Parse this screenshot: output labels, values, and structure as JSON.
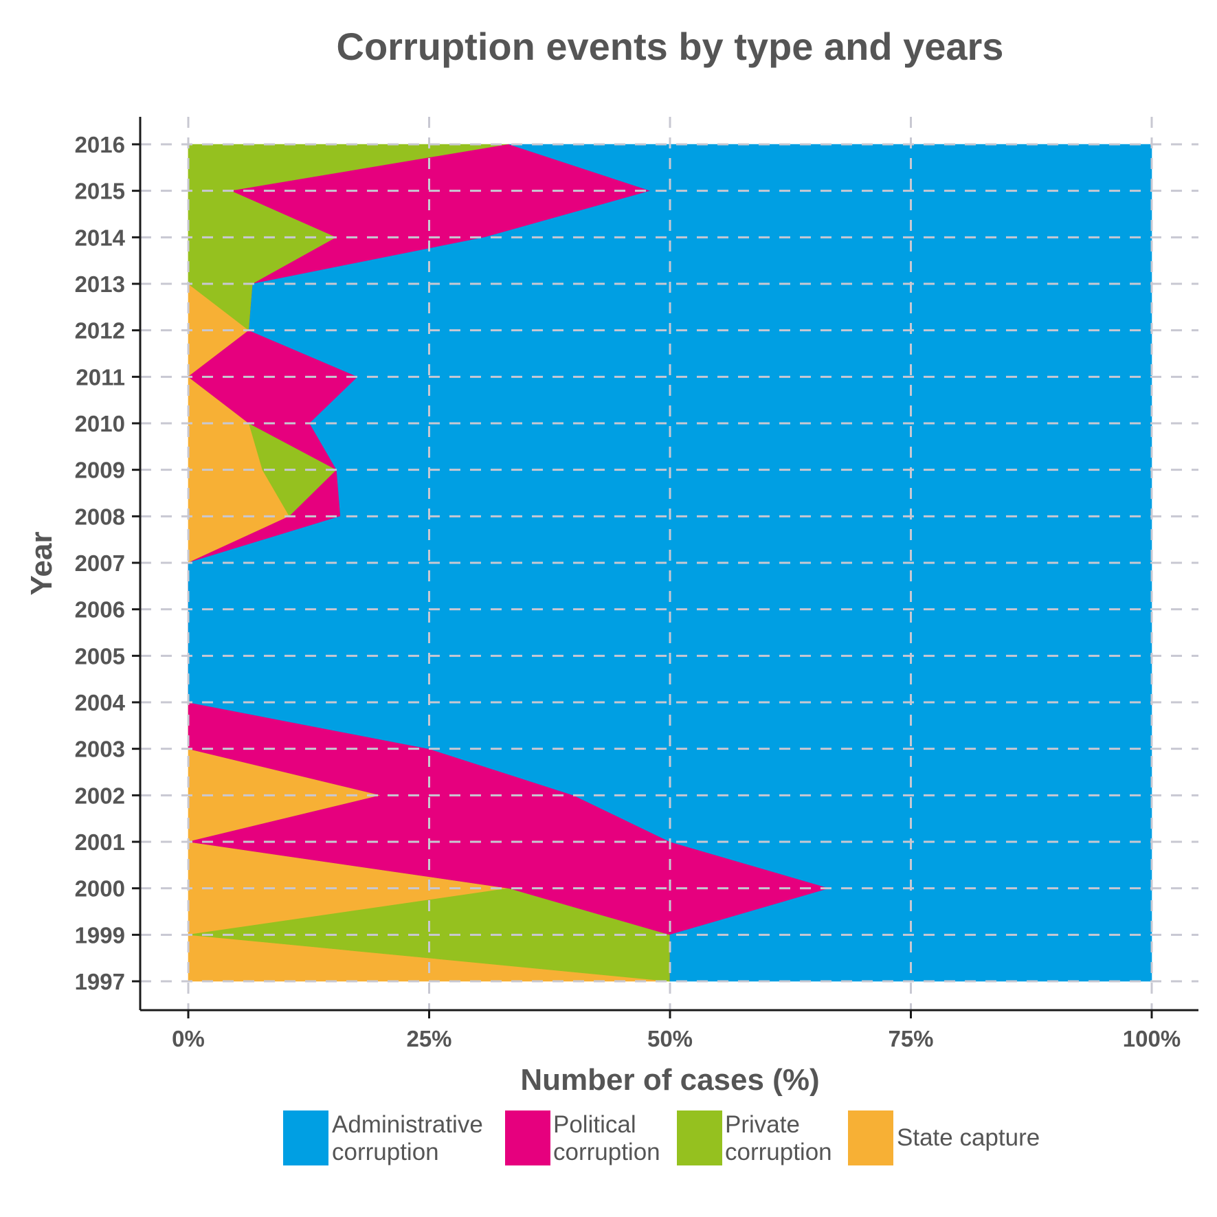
{
  "chart_data": {
    "type": "area",
    "orientation": "horizontal",
    "stacked": "percent",
    "title": "Corruption events by type and years",
    "xlabel": "Number of cases (%)",
    "ylabel": "Year",
    "xlim": [
      0,
      100
    ],
    "x_ticks": [
      "0%",
      "25%",
      "50%",
      "75%",
      "100%"
    ],
    "categories": [
      "1997",
      "1999",
      "2000",
      "2001",
      "2002",
      "2003",
      "2004",
      "2005",
      "2006",
      "2007",
      "2008",
      "2009",
      "2010",
      "2011",
      "2012",
      "2013",
      "2014",
      "2015",
      "2016"
    ],
    "grid": true,
    "legend_position": "bottom",
    "series": [
      {
        "name": "State capture",
        "color": "#F7B035",
        "values": [
          50,
          0,
          33.3,
          0,
          20,
          0,
          0,
          0,
          0,
          0,
          10.5,
          7.7,
          6.3,
          0,
          6.3,
          0,
          0,
          0,
          0
        ]
      },
      {
        "name": "Private corruption",
        "color": "#95C11F",
        "values": [
          0,
          50,
          0,
          0,
          0,
          0,
          0,
          0,
          0,
          0,
          0,
          7.7,
          0,
          0,
          0,
          6.7,
          15.4,
          4.5,
          33.3
        ]
      },
      {
        "name": "Political corruption",
        "color": "#E6007E",
        "values": [
          0,
          0,
          33.3,
          50,
          20,
          25,
          0,
          0,
          0,
          0,
          5.3,
          0,
          6.3,
          17.6,
          0,
          0,
          15.4,
          43.5,
          0
        ]
      },
      {
        "name": "Administrative corruption",
        "color": "#009FE3",
        "values": [
          50,
          50,
          33.4,
          50,
          60,
          75,
          100,
          100,
          100,
          100,
          84.2,
          84.6,
          87.4,
          82.4,
          93.7,
          93.3,
          69.2,
          52,
          66.7
        ]
      }
    ],
    "legend": [
      {
        "lines": [
          "Administrative",
          "corruption"
        ],
        "color": "#009FE3"
      },
      {
        "lines": [
          "Political",
          "corruption"
        ],
        "color": "#E6007E"
      },
      {
        "lines": [
          "Private",
          "corruption"
        ],
        "color": "#95C11F"
      },
      {
        "lines": [
          "State capture"
        ],
        "color": "#F7B035"
      }
    ]
  }
}
